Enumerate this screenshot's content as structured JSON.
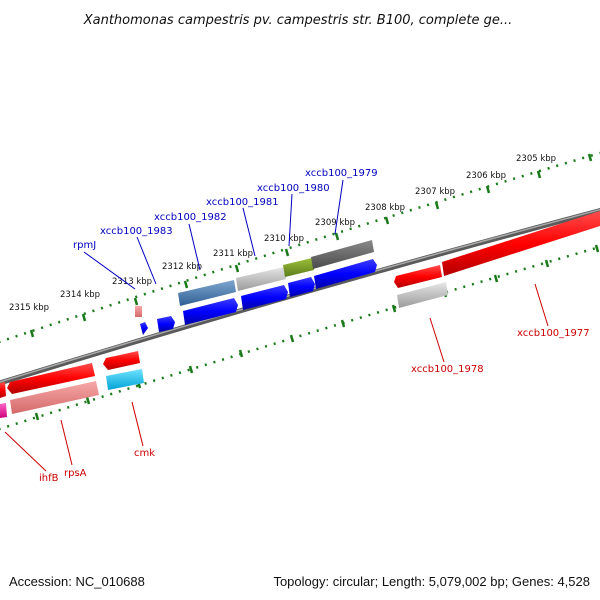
{
  "title": "Xanthomonas campestris pv. campestris str. B100, complete ge...",
  "footer": {
    "accession": "Accession: NC_010688",
    "summary": "Topology: circular; Length: 5,079,002 bp; Genes: 4,528"
  },
  "colors": {
    "backbone": "#7f7f7f",
    "tick": "#1a7a1a",
    "forward_label": "#0000c0",
    "reverse_label": "#cc0000"
  },
  "ticks": [
    {
      "label": "2305 kbp"
    },
    {
      "label": "2306 kbp"
    },
    {
      "label": "2307 kbp"
    },
    {
      "label": "2308 kbp"
    },
    {
      "label": "2309 kbp"
    },
    {
      "label": "2310 kbp"
    },
    {
      "label": "2311 kbp"
    },
    {
      "label": "2312 kbp"
    },
    {
      "label": "2313 kbp"
    },
    {
      "label": "2314 kbp"
    },
    {
      "label": "2315 kbp"
    }
  ],
  "gene_labels": [
    {
      "name": "xccb100_1979",
      "strand": "forward"
    },
    {
      "name": "xccb100_1980",
      "strand": "forward"
    },
    {
      "name": "xccb100_1981",
      "strand": "forward"
    },
    {
      "name": "xccb100_1982",
      "strand": "forward"
    },
    {
      "name": "xccb100_1983",
      "strand": "forward"
    },
    {
      "name": "rpmJ",
      "strand": "forward"
    },
    {
      "name": "xccb100_1977",
      "strand": "reverse"
    },
    {
      "name": "xccb100_1978",
      "strand": "reverse"
    },
    {
      "name": "cmk",
      "strand": "reverse"
    },
    {
      "name": "rpsA",
      "strand": "reverse"
    },
    {
      "name": "ihfB",
      "strand": "reverse"
    }
  ]
}
